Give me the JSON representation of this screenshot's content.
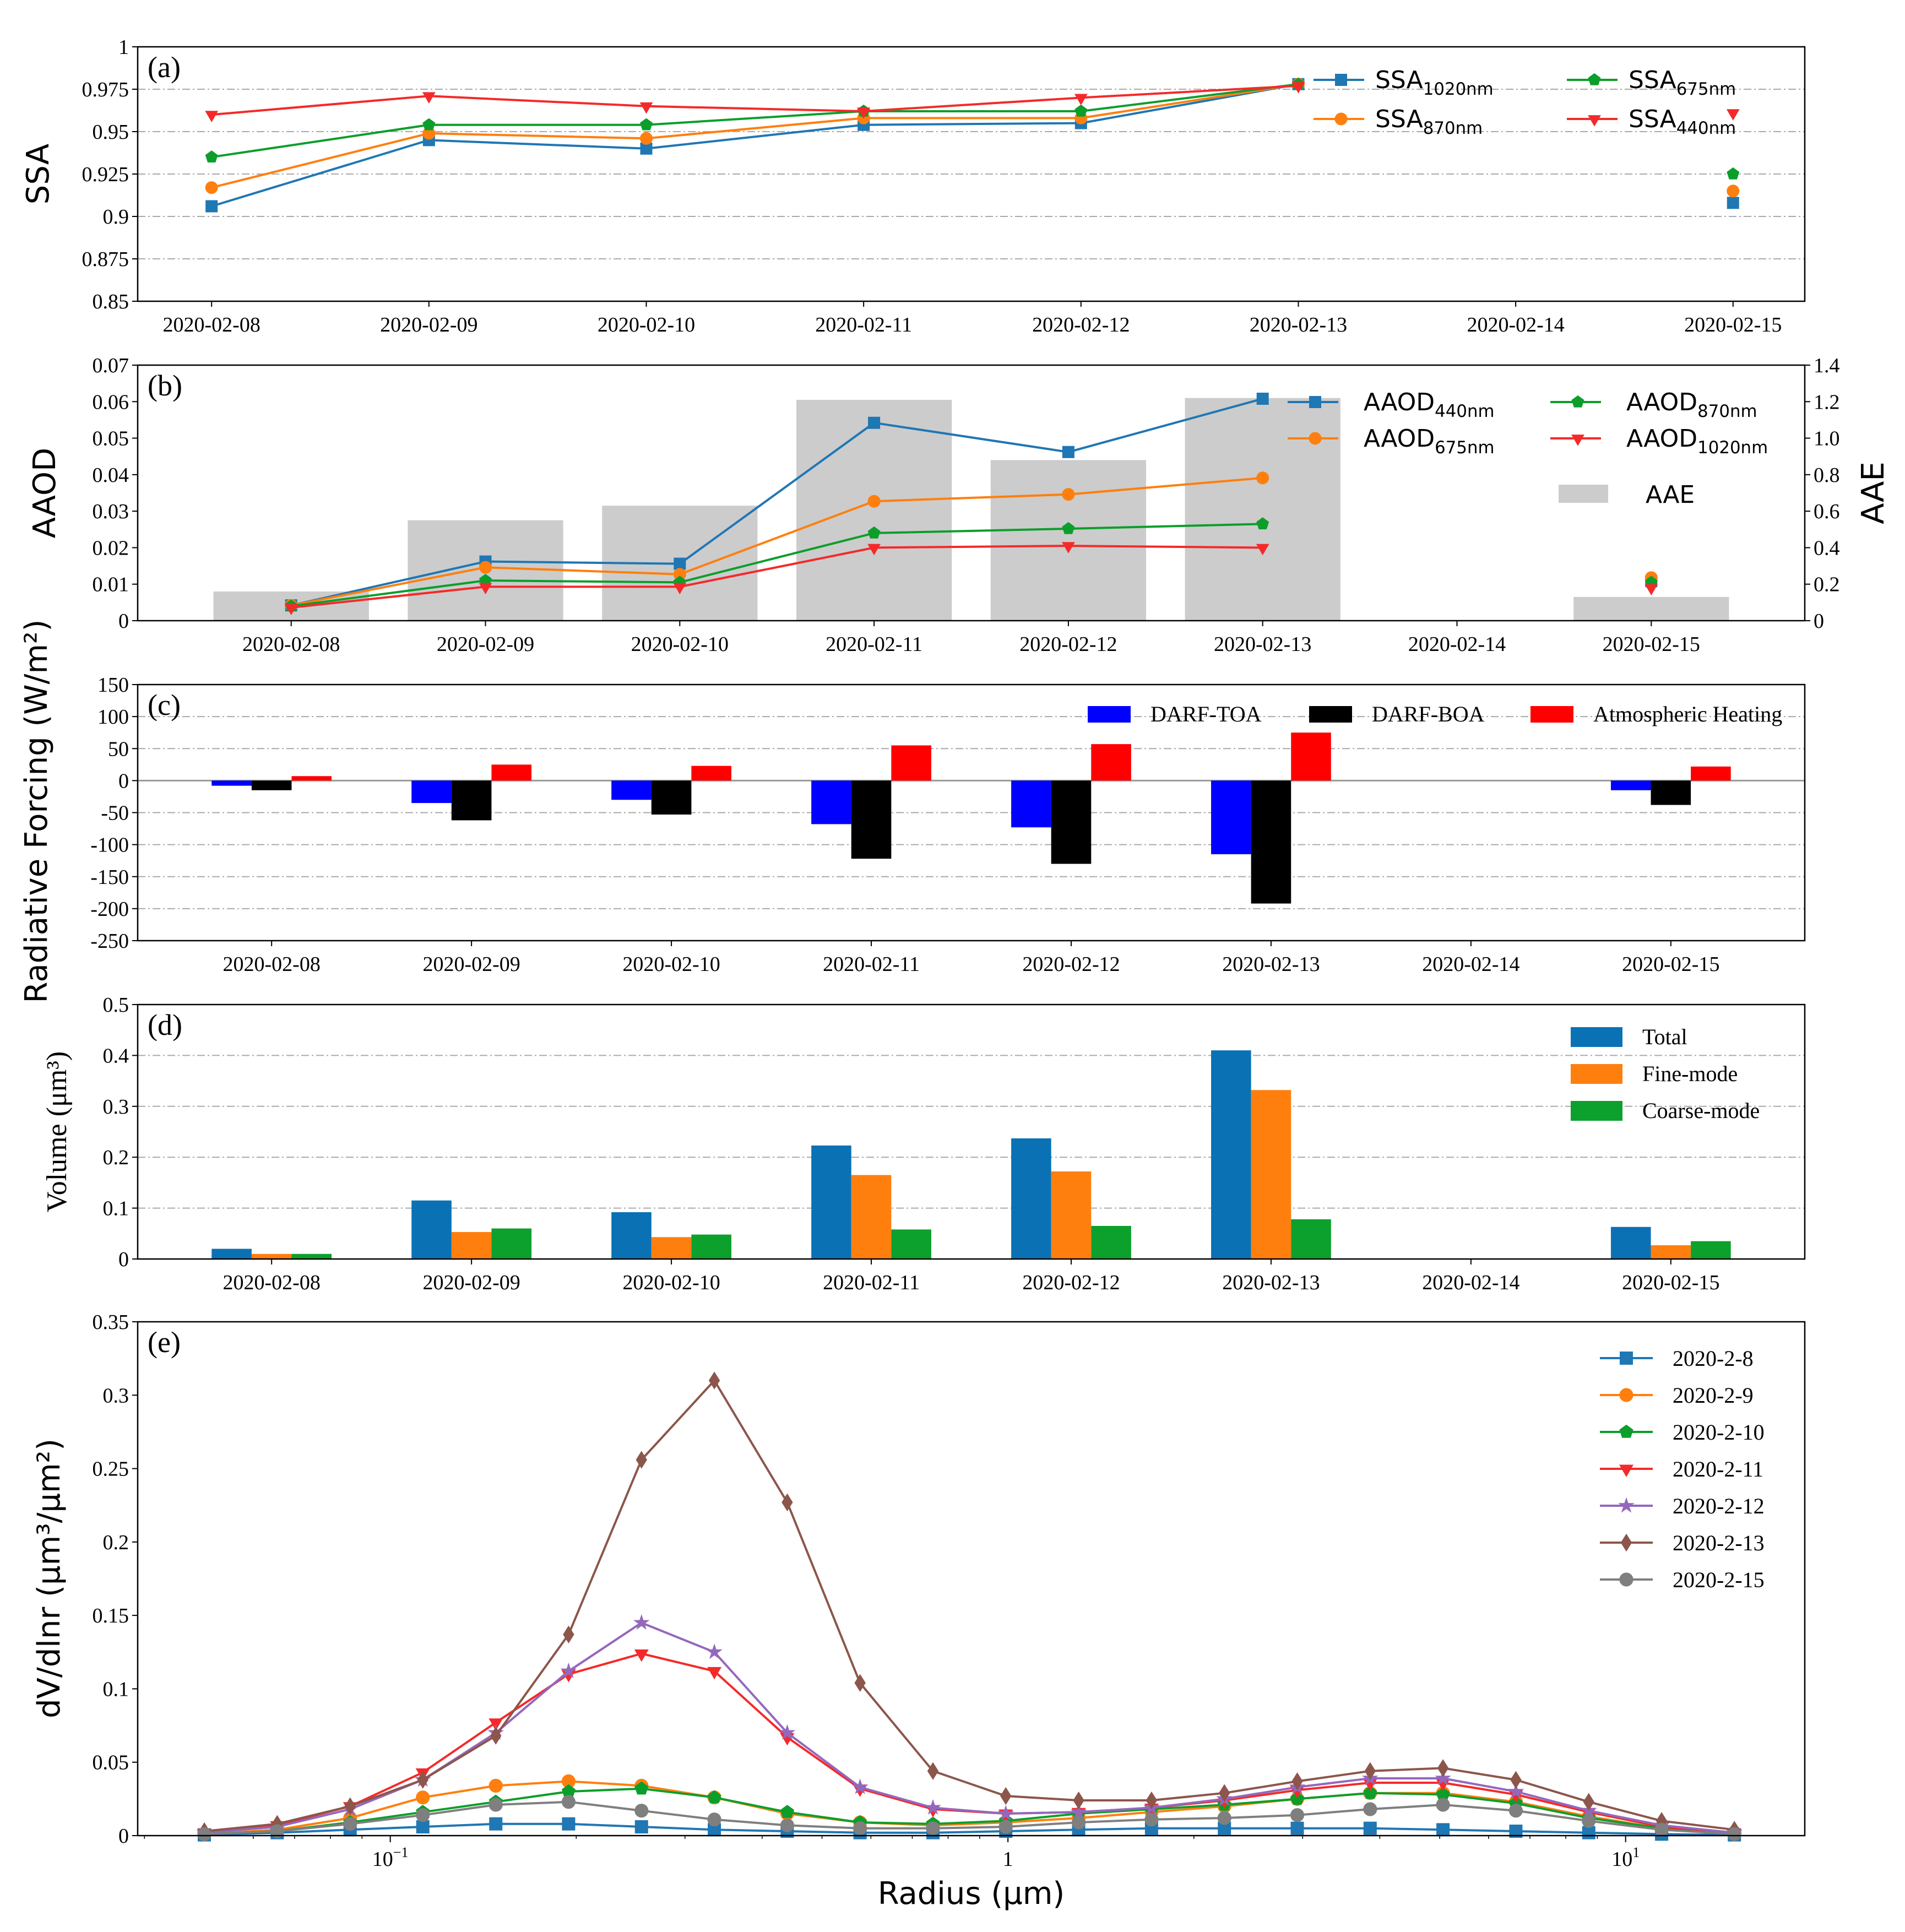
{
  "chart_data": [
    {
      "panel": "(a)",
      "type": "line",
      "categories": [
        "2020-02-08",
        "2020-02-09",
        "2020-02-10",
        "2020-02-11",
        "2020-02-12",
        "2020-02-13",
        "2020-02-14",
        "2020-02-15"
      ],
      "ylabel": "SSA",
      "ylim": [
        0.85,
        1.0
      ],
      "yticks": [
        "0.85",
        "0.875",
        "0.9",
        "0.925",
        "0.95",
        "0.975",
        "1"
      ],
      "grid": true,
      "legend": "top-right",
      "series": [
        {
          "name": "SSA",
          "sub": "1020nm",
          "color": "#1f77b4",
          "marker": "square",
          "values": [
            0.906,
            0.945,
            0.94,
            0.954,
            0.955,
            0.978,
            null,
            0.908
          ]
        },
        {
          "name": "SSA",
          "sub": "870nm",
          "color": "#ff7f0e",
          "marker": "circle",
          "values": [
            0.917,
            0.949,
            0.946,
            0.958,
            0.958,
            0.978,
            null,
            0.915
          ]
        },
        {
          "name": "SSA",
          "sub": "675nm",
          "color": "#0c9e2b",
          "marker": "pentagon",
          "values": [
            0.935,
            0.954,
            0.954,
            0.962,
            0.962,
            0.978,
            null,
            0.925
          ]
        },
        {
          "name": "SSA",
          "sub": "440nm",
          "color": "#f42a2a",
          "marker": "triangle-down",
          "values": [
            0.96,
            0.971,
            0.965,
            0.962,
            0.97,
            0.977,
            null,
            0.961
          ]
        }
      ]
    },
    {
      "panel": "(b)",
      "type": "line",
      "categories": [
        "2020-02-08",
        "2020-02-09",
        "2020-02-10",
        "2020-02-11",
        "2020-02-12",
        "2020-02-13",
        "2020-02-14",
        "2020-02-15"
      ],
      "ylabel": "AAOD",
      "ylabel_right": "AAE",
      "ylim": [
        0,
        0.07
      ],
      "yticks": [
        "0",
        "0.01",
        "0.02",
        "0.03",
        "0.04",
        "0.05",
        "0.06",
        "0.07"
      ],
      "ylim_right": [
        0,
        1.4
      ],
      "yticks_right": [
        "0",
        "0.2",
        "0.4",
        "0.6",
        "0.8",
        "1.0",
        "1.2",
        "1.4"
      ],
      "grid": false,
      "legend": "top-right",
      "bars": {
        "name": "AAE",
        "color": "#cccccc",
        "values": [
          0.16,
          0.55,
          0.63,
          1.21,
          0.88,
          1.22,
          null,
          0.13
        ]
      },
      "series": [
        {
          "name": "AAOD",
          "sub": "440nm",
          "color": "#1f77b4",
          "marker": "square",
          "values": [
            0.0042,
            0.0162,
            0.0156,
            0.0542,
            0.0462,
            0.0608,
            null,
            0.0108
          ]
        },
        {
          "name": "AAOD",
          "sub": "675nm",
          "color": "#ff7f0e",
          "marker": "circle",
          "values": [
            0.0042,
            0.0146,
            0.0127,
            0.0327,
            0.0346,
            0.0391,
            null,
            0.0118
          ]
        },
        {
          "name": "AAOD",
          "sub": "870nm",
          "color": "#0c9e2b",
          "marker": "pentagon",
          "values": [
            0.004,
            0.011,
            0.0105,
            0.024,
            0.0252,
            0.0265,
            null,
            0.0105
          ]
        },
        {
          "name": "AAOD",
          "sub": "1020nm",
          "color": "#f42a2a",
          "marker": "triangle-down",
          "values": [
            0.0036,
            0.0093,
            0.0093,
            0.02,
            0.0205,
            0.02,
            null,
            0.009
          ]
        }
      ]
    },
    {
      "panel": "(c)",
      "type": "bar",
      "categories": [
        "2020-02-08",
        "2020-02-09",
        "2020-02-10",
        "2020-02-11",
        "2020-02-12",
        "2020-02-13",
        "2020-02-14",
        "2020-02-15"
      ],
      "ylabel": "Radiative Forcing (W/m²)",
      "ylim": [
        -250,
        150
      ],
      "yticks": [
        "-250",
        "-200",
        "-150",
        "-100",
        "-50",
        "0",
        "50",
        "100",
        "150"
      ],
      "grid": true,
      "legend": "top-right",
      "series": [
        {
          "name": "DARF-TOA",
          "color": "#0000ff",
          "values": [
            -8,
            -35,
            -30,
            -68,
            -73,
            -115,
            null,
            -15
          ]
        },
        {
          "name": "DARF-BOA",
          "color": "#000000",
          "values": [
            -15,
            -62,
            -53,
            -122,
            -130,
            -192,
            null,
            -38
          ]
        },
        {
          "name": "Atmospheric Heating",
          "color": "#ff0000",
          "values": [
            7,
            25,
            23,
            55,
            57,
            75,
            null,
            22
          ]
        }
      ]
    },
    {
      "panel": "(d)",
      "type": "bar",
      "categories": [
        "2020-02-08",
        "2020-02-09",
        "2020-02-10",
        "2020-02-11",
        "2020-02-12",
        "2020-02-13",
        "2020-02-14",
        "2020-02-15"
      ],
      "ylabel": "Volume (μm³)",
      "ylim": [
        0,
        0.5
      ],
      "yticks": [
        "0",
        "0.1",
        "0.2",
        "0.3",
        "0.4",
        "0.5"
      ],
      "grid": true,
      "legend": "top-right",
      "series": [
        {
          "name": "Total",
          "color": "#0a72b4",
          "values": [
            0.02,
            0.115,
            0.092,
            0.223,
            0.237,
            0.41,
            null,
            0.063
          ]
        },
        {
          "name": "Fine-mode",
          "color": "#ff7f0e",
          "values": [
            0.01,
            0.053,
            0.043,
            0.165,
            0.172,
            0.332,
            null,
            0.027
          ]
        },
        {
          "name": "Coarse-mode",
          "color": "#0ca02c",
          "values": [
            0.01,
            0.06,
            0.048,
            0.058,
            0.065,
            0.078,
            null,
            0.035
          ]
        }
      ]
    },
    {
      "panel": "(e)",
      "type": "line",
      "xscale": "log",
      "xlabel": "Radius (μm)",
      "ylabel": "dV/dlnr (μm³/μm²)",
      "xlim": [
        0.039,
        19.5
      ],
      "ylim": [
        0,
        0.35
      ],
      "yticks": [
        "0",
        "0.05",
        "0.1",
        "0.15",
        "0.2",
        "0.25",
        "0.3",
        "0.35"
      ],
      "xticks": [
        {
          "value": 0.1,
          "base": "10",
          "exp": "−1"
        },
        {
          "value": 1,
          "base": "1",
          "exp": ""
        },
        {
          "value": 10,
          "base": "10",
          "exp": "1"
        }
      ],
      "grid": false,
      "legend": "top-right",
      "x": [
        0.05,
        0.0656,
        0.0861,
        0.1129,
        0.1482,
        0.1944,
        0.2551,
        0.3347,
        0.4392,
        0.5762,
        0.7561,
        0.992,
        1.3016,
        1.7079,
        2.2409,
        2.9403,
        3.8581,
        5.0622,
        6.6423,
        8.7156,
        11.4359,
        15.0
      ],
      "series": [
        {
          "name": "2020-2-8",
          "color": "#1f77b4",
          "marker": "square",
          "values": [
            0.0005,
            0.002,
            0.004,
            0.006,
            0.008,
            0.008,
            0.006,
            0.004,
            0.003,
            0.002,
            0.002,
            0.003,
            0.004,
            0.005,
            0.005,
            0.005,
            0.005,
            0.004,
            0.003,
            0.002,
            0.001,
            0.0005
          ]
        },
        {
          "name": "2020-2-9",
          "color": "#ff7f0e",
          "marker": "circle",
          "values": [
            0.001,
            0.004,
            0.012,
            0.026,
            0.034,
            0.037,
            0.034,
            0.026,
            0.015,
            0.009,
            0.007,
            0.009,
            0.012,
            0.016,
            0.02,
            0.025,
            0.029,
            0.029,
            0.023,
            0.013,
            0.005,
            0.002
          ]
        },
        {
          "name": "2020-2-10",
          "color": "#0c9e2b",
          "marker": "pentagon",
          "values": [
            0.001,
            0.003,
            0.009,
            0.016,
            0.023,
            0.03,
            0.032,
            0.026,
            0.016,
            0.009,
            0.008,
            0.01,
            0.015,
            0.018,
            0.021,
            0.025,
            0.029,
            0.028,
            0.022,
            0.012,
            0.005,
            0.001
          ]
        },
        {
          "name": "2020-2-11",
          "color": "#f42a2a",
          "marker": "triangle-down",
          "values": [
            0.002,
            0.007,
            0.02,
            0.043,
            0.077,
            0.11,
            0.124,
            0.112,
            0.067,
            0.032,
            0.018,
            0.015,
            0.016,
            0.019,
            0.024,
            0.031,
            0.036,
            0.036,
            0.028,
            0.016,
            0.006,
            0.002
          ]
        },
        {
          "name": "2020-2-12",
          "color": "#9467bd",
          "marker": "star",
          "values": [
            0.002,
            0.006,
            0.018,
            0.038,
            0.07,
            0.112,
            0.145,
            0.125,
            0.07,
            0.033,
            0.019,
            0.015,
            0.016,
            0.019,
            0.025,
            0.033,
            0.039,
            0.039,
            0.03,
            0.017,
            0.007,
            0.002
          ]
        },
        {
          "name": "2020-2-13",
          "color": "#8c564b",
          "marker": "diamond",
          "values": [
            0.003,
            0.008,
            0.02,
            0.038,
            0.068,
            0.137,
            0.256,
            0.31,
            0.227,
            0.104,
            0.044,
            0.027,
            0.024,
            0.024,
            0.029,
            0.037,
            0.044,
            0.046,
            0.038,
            0.023,
            0.01,
            0.004
          ]
        },
        {
          "name": "2020-2-15",
          "color": "#7f7f7f",
          "marker": "circle",
          "values": [
            0.001,
            0.003,
            0.008,
            0.014,
            0.021,
            0.023,
            0.017,
            0.011,
            0.007,
            0.005,
            0.005,
            0.006,
            0.009,
            0.011,
            0.012,
            0.014,
            0.018,
            0.021,
            0.017,
            0.01,
            0.004,
            0.001
          ]
        }
      ]
    }
  ]
}
